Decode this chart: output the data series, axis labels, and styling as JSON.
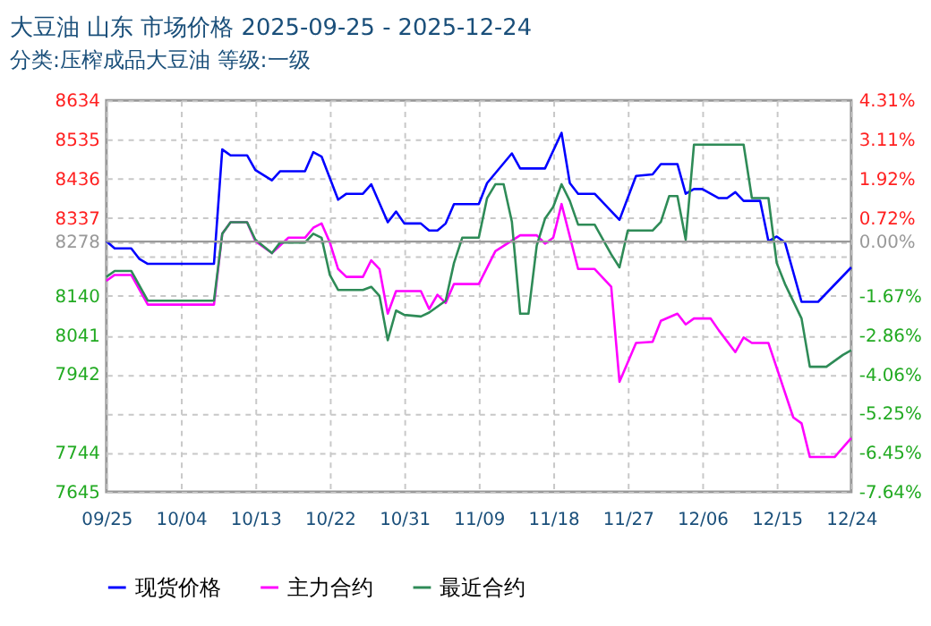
{
  "chart_data": {
    "type": "line",
    "title": "大豆油  山东  市场价格  2025-09-25 - 2025-12-24",
    "subtitle": "分类:压榨成品大豆油  等级:一级",
    "xlim": [
      "2025-09-25",
      "2025-12-24"
    ],
    "xticks": [
      {
        "value": "2025-09-25",
        "label": "09/25"
      },
      {
        "value": "2025-10-04",
        "label": "10/04"
      },
      {
        "value": "2025-10-13",
        "label": "10/13"
      },
      {
        "value": "2025-10-22",
        "label": "10/22"
      },
      {
        "value": "2025-10-31",
        "label": "10/31"
      },
      {
        "value": "2025-11-09",
        "label": "11/09"
      },
      {
        "value": "2025-11-18",
        "label": "11/18"
      },
      {
        "value": "2025-11-27",
        "label": "11/27"
      },
      {
        "value": "2025-12-06",
        "label": "12/06"
      },
      {
        "value": "2025-12-15",
        "label": "12/15"
      },
      {
        "value": "2025-12-24",
        "label": "12/24"
      }
    ],
    "ylim": [
      7645,
      8634
    ],
    "yticks": [
      8634,
      8535,
      8436,
      8337,
      8278,
      {
        "value": 8238,
        "label": null
      },
      8140,
      8041,
      7942,
      {
        "value": 7843,
        "label": null
      },
      7744,
      7645
    ],
    "y2lim": [
      -7.64,
      4.31
    ],
    "y2ticks": [
      {
        "value": 4.31,
        "label": "4.31%"
      },
      {
        "value": 3.11,
        "label": "3.11%"
      },
      {
        "value": 1.92,
        "label": "1.92%"
      },
      {
        "value": 0.72,
        "label": "0.72%"
      },
      {
        "value": 0,
        "label": "0.00%"
      },
      {
        "value": -0.48,
        "label": null
      },
      {
        "value": -1.67,
        "label": "-1.67%"
      },
      {
        "value": -2.86,
        "label": "-2.86%"
      },
      {
        "value": -4.06,
        "label": "-4.06%"
      },
      {
        "value": -5.25,
        "label": "-5.25%"
      },
      {
        "value": -6.45,
        "label": "-6.45%"
      },
      {
        "value": -7.64,
        "label": "-7.64%"
      }
    ],
    "grid": true,
    "legend": "bottom",
    "line_style": "solid",
    "ref_lines": [
      {
        "axis": "y2",
        "value": 0,
        "color": "#999999"
      }
    ],
    "series": [
      {
        "name": "现货价格",
        "color": "#0000ff",
        "x": [
          "2025-09-25",
          "2025-09-26",
          "2025-09-28",
          "2025-09-29",
          "2025-09-30",
          "2025-10-08",
          "2025-10-09",
          "2025-10-10",
          "2025-10-12",
          "2025-10-13",
          "2025-10-15",
          "2025-10-16",
          "2025-10-19",
          "2025-10-20",
          "2025-10-21",
          "2025-10-23",
          "2025-10-24",
          "2025-10-26",
          "2025-10-27",
          "2025-10-29",
          "2025-10-30",
          "2025-10-31",
          "2025-11-02",
          "2025-11-03",
          "2025-11-04",
          "2025-11-05",
          "2025-11-06",
          "2025-11-09",
          "2025-11-10",
          "2025-11-13",
          "2025-11-14",
          "2025-11-17",
          "2025-11-19",
          "2025-11-20",
          "2025-11-21",
          "2025-11-23",
          "2025-11-26",
          "2025-11-28",
          "2025-11-30",
          "2025-12-01",
          "2025-12-03",
          "2025-12-04",
          "2025-12-05",
          "2025-12-06",
          "2025-12-08",
          "2025-12-09",
          "2025-12-10",
          "2025-12-11",
          "2025-12-13",
          "2025-12-14",
          "2025-12-15",
          "2025-12-16",
          "2025-12-18",
          "2025-12-20",
          "2025-12-24"
        ],
        "values": [
          8278,
          8260,
          8260,
          8233,
          8221,
          8221,
          8510,
          8495,
          8495,
          8458,
          8432,
          8455,
          8455,
          8503,
          8492,
          8383,
          8398,
          8398,
          8422,
          8326,
          8353,
          8323,
          8323,
          8305,
          8305,
          8323,
          8372,
          8372,
          8425,
          8500,
          8462,
          8462,
          8552,
          8425,
          8398,
          8398,
          8332,
          8443,
          8447,
          8473,
          8473,
          8398,
          8410,
          8410,
          8387,
          8387,
          8402,
          8380,
          8380,
          8278,
          8290,
          8275,
          8125,
          8125,
          8212
        ]
      },
      {
        "name": "主力合约",
        "color": "#ff00ff",
        "x": [
          "2025-09-25",
          "2025-09-26",
          "2025-09-28",
          "2025-09-30",
          "2025-10-08",
          "2025-10-09",
          "2025-10-10",
          "2025-10-12",
          "2025-10-13",
          "2025-10-15",
          "2025-10-17",
          "2025-10-19",
          "2025-10-20",
          "2025-10-21",
          "2025-10-22",
          "2025-10-23",
          "2025-10-24",
          "2025-10-26",
          "2025-10-27",
          "2025-10-28",
          "2025-10-29",
          "2025-10-30",
          "2025-11-02",
          "2025-11-03",
          "2025-11-04",
          "2025-11-05",
          "2025-11-06",
          "2025-11-09",
          "2025-11-11",
          "2025-11-14",
          "2025-11-16",
          "2025-11-17",
          "2025-11-18",
          "2025-11-19",
          "2025-11-21",
          "2025-11-23",
          "2025-11-25",
          "2025-11-26",
          "2025-11-28",
          "2025-11-30",
          "2025-12-01",
          "2025-12-03",
          "2025-12-04",
          "2025-12-05",
          "2025-12-07",
          "2025-12-08",
          "2025-12-10",
          "2025-12-11",
          "2025-12-12",
          "2025-12-14",
          "2025-12-17",
          "2025-12-18",
          "2025-12-19",
          "2025-12-22",
          "2025-12-24"
        ],
        "values": [
          8178,
          8193,
          8193,
          8118,
          8118,
          8297,
          8326,
          8326,
          8278,
          8248,
          8287,
          8287,
          8312,
          8323,
          8275,
          8208,
          8188,
          8188,
          8230,
          8208,
          8095,
          8152,
          8152,
          8107,
          8143,
          8122,
          8170,
          8170,
          8253,
          8293,
          8293,
          8272,
          8287,
          8372,
          8208,
          8208,
          8163,
          7923,
          8021,
          8024,
          8077,
          8095,
          8068,
          8083,
          8083,
          8053,
          7998,
          8035,
          8021,
          8021,
          7833,
          7818,
          7733,
          7733,
          7781
        ]
      },
      {
        "name": "最近合约",
        "color": "#2e8b57",
        "x": [
          "2025-09-25",
          "2025-09-26",
          "2025-09-28",
          "2025-09-30",
          "2025-10-08",
          "2025-10-09",
          "2025-10-10",
          "2025-10-12",
          "2025-10-13",
          "2025-10-15",
          "2025-10-16",
          "2025-10-19",
          "2025-10-20",
          "2025-10-21",
          "2025-10-22",
          "2025-10-23",
          "2025-10-26",
          "2025-10-27",
          "2025-10-28",
          "2025-10-29",
          "2025-10-30",
          "2025-10-31",
          "2025-11-02",
          "2025-11-03",
          "2025-11-05",
          "2025-11-06",
          "2025-11-07",
          "2025-11-09",
          "2025-11-10",
          "2025-11-11",
          "2025-11-12",
          "2025-11-13",
          "2025-11-14",
          "2025-11-15",
          "2025-11-16",
          "2025-11-17",
          "2025-11-18",
          "2025-11-19",
          "2025-11-20",
          "2025-11-21",
          "2025-11-23",
          "2025-11-25",
          "2025-11-26",
          "2025-11-27",
          "2025-11-30",
          "2025-12-01",
          "2025-12-02",
          "2025-12-03",
          "2025-12-04",
          "2025-12-05",
          "2025-12-11",
          "2025-12-12",
          "2025-12-14",
          "2025-12-15",
          "2025-12-16",
          "2025-12-18",
          "2025-12-19",
          "2025-12-21",
          "2025-12-23",
          "2025-12-24"
        ],
        "values": [
          8188,
          8203,
          8203,
          8128,
          8128,
          8297,
          8326,
          8326,
          8282,
          8248,
          8275,
          8275,
          8297,
          8287,
          8193,
          8155,
          8155,
          8163,
          8140,
          8028,
          8103,
          8092,
          8088,
          8098,
          8128,
          8223,
          8287,
          8287,
          8387,
          8422,
          8422,
          8327,
          8095,
          8095,
          8267,
          8335,
          8365,
          8422,
          8380,
          8320,
          8320,
          8245,
          8212,
          8305,
          8305,
          8327,
          8392,
          8392,
          8282,
          8522,
          8522,
          8387,
          8387,
          8223,
          8170,
          8083,
          7961,
          7961,
          7991,
          8003
        ]
      }
    ]
  }
}
